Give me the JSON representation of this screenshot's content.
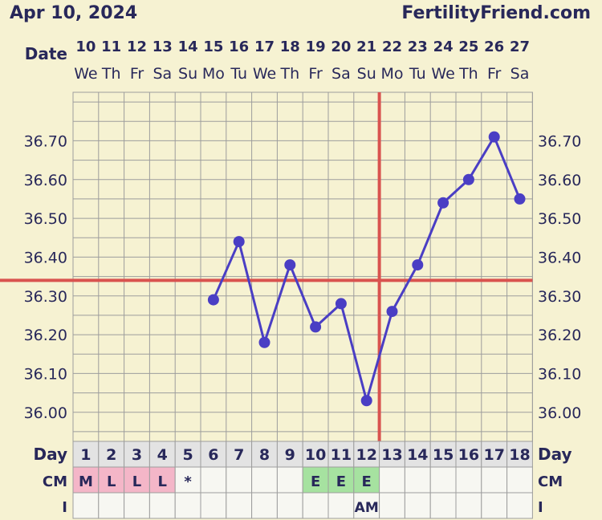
{
  "header": {
    "date": "Apr 10, 2024",
    "site": "FertilityFriend.com"
  },
  "labels": {
    "date": "Date",
    "day": "Day",
    "cm": "CM",
    "i": "I"
  },
  "colors": {
    "background": "#f6f2d2",
    "grid": "#9d9d9d",
    "line": "#4a3ec4",
    "coverline": "#d9534f",
    "text": "#28285a",
    "cm_menses": "#f4b6c8",
    "cm_eggwhite": "#a6e2a0",
    "cell_bg": "#f7f7f2"
  },
  "chart_data": {
    "type": "line",
    "dates": [
      "10",
      "11",
      "12",
      "13",
      "14",
      "15",
      "16",
      "17",
      "18",
      "19",
      "20",
      "21",
      "22",
      "23",
      "24",
      "25",
      "26",
      "27"
    ],
    "weekdays": [
      "We",
      "Th",
      "Fr",
      "Sa",
      "Su",
      "Mo",
      "Tu",
      "We",
      "Th",
      "Fr",
      "Sa",
      "Su",
      "Mo",
      "Tu",
      "We",
      "Th",
      "Fr",
      "Sa"
    ],
    "cycle_days": [
      "1",
      "2",
      "3",
      "4",
      "5",
      "6",
      "7",
      "8",
      "9",
      "10",
      "11",
      "12",
      "13",
      "14",
      "15",
      "16",
      "17",
      "18"
    ],
    "y_ticks": [
      "36.70",
      "36.60",
      "36.50",
      "36.40",
      "36.30",
      "36.20",
      "36.10",
      "36.00"
    ],
    "ylim": [
      35.925,
      36.825
    ],
    "series": [
      {
        "values": [
          null,
          null,
          null,
          null,
          null,
          36.29,
          36.44,
          36.18,
          36.38,
          36.22,
          36.28,
          36.03,
          36.26,
          36.38,
          36.54,
          36.6,
          36.71,
          36.55
        ]
      }
    ],
    "coverline": 36.34,
    "ovulation_marker_index": 12,
    "cm": [
      "M",
      "L",
      "L",
      "L",
      "*",
      "",
      "",
      "",
      "",
      "E",
      "E",
      "E",
      "",
      "",
      "",
      "",
      "",
      ""
    ],
    "intercourse": [
      "",
      "",
      "",
      "",
      "",
      "",
      "",
      "",
      "",
      "",
      "",
      "AM",
      "",
      "",
      "",
      "",
      "",
      ""
    ]
  }
}
